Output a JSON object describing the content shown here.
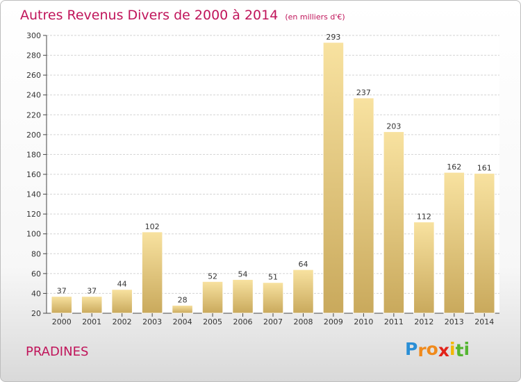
{
  "title": "Autres Revenus Divers de 2000 à 2014",
  "subtitle": "(en milliers d'€)",
  "location": "PRADINES",
  "logo": {
    "letters": [
      "P",
      "r",
      "o",
      "x",
      "i",
      "t",
      "i"
    ],
    "colors": [
      "#2a8fd6",
      "#f08a1c",
      "#f08a1c",
      "#e2231a",
      "#f2b705",
      "#55b531",
      "#55b531"
    ]
  },
  "colors": {
    "title": "#c0145a",
    "bar_light": "#f8e2a0",
    "bar_dark": "#c9a95c",
    "grid": "#d3d3d3"
  },
  "chart_data": {
    "type": "bar",
    "categories": [
      "2000",
      "2001",
      "2002",
      "2003",
      "2004",
      "2005",
      "2006",
      "2007",
      "2008",
      "2009",
      "2010",
      "2011",
      "2012",
      "2013",
      "2014"
    ],
    "values": [
      37,
      37,
      44,
      102,
      28,
      52,
      54,
      51,
      64,
      293,
      237,
      203,
      112,
      162,
      161
    ],
    "ylim": [
      20,
      300
    ],
    "yticks": [
      20,
      40,
      60,
      80,
      100,
      120,
      140,
      160,
      180,
      200,
      220,
      240,
      260,
      280,
      300
    ],
    "grid": true,
    "xlabel": "",
    "ylabel": ""
  }
}
